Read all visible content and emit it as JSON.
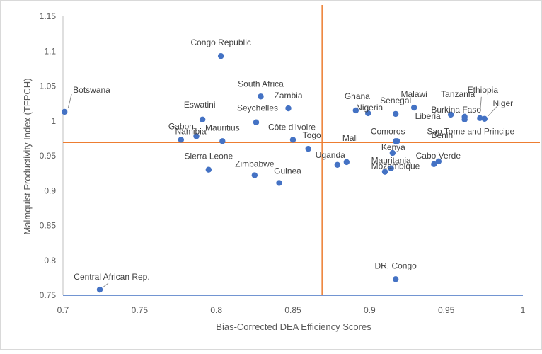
{
  "chart_data": {
    "type": "scatter",
    "xlabel": "Bias-Corrected DEA Efficiency Scores",
    "ylabel": "Malmquist Productivity Index (TFPCH)",
    "xlim": [
      0.7,
      1.0
    ],
    "ylim": [
      0.75,
      1.15
    ],
    "xticks": [
      "0.7",
      "0.75",
      "0.8",
      "0.85",
      "0.9",
      "0.95",
      "1"
    ],
    "yticks": [
      "0.75",
      "0.8",
      "0.85",
      "0.9",
      "0.95",
      "1",
      "1.05",
      "1.1",
      "1.15"
    ],
    "reference_lines": {
      "x": 0.869,
      "y": 0.969
    },
    "colors": {
      "point": "#4472C4",
      "ref_line": "#ED7D31",
      "axis": "#4472C4",
      "left_axis": "#BFBFBF"
    },
    "points": [
      {
        "name": "Botswana",
        "x": 0.701,
        "y": 1.013
      },
      {
        "name": "Congo Republic",
        "x": 0.803,
        "y": 1.093
      },
      {
        "name": "South Africa",
        "x": 0.829,
        "y": 1.035
      },
      {
        "name": "Zambia",
        "x": 0.847,
        "y": 1.018
      },
      {
        "name": "Seychelles",
        "x": 0.826,
        "y": 0.998
      },
      {
        "name": "Eswatini",
        "x": 0.791,
        "y": 1.002
      },
      {
        "name": "Namibia",
        "x": 0.787,
        "y": 0.978
      },
      {
        "name": "Gabon",
        "x": 0.777,
        "y": 0.973
      },
      {
        "name": "Mauritius",
        "x": 0.804,
        "y": 0.971
      },
      {
        "name": "Côte d'Ivoire",
        "x": 0.85,
        "y": 0.973
      },
      {
        "name": "Togo",
        "x": 0.86,
        "y": 0.96
      },
      {
        "name": "Sierra Leone",
        "x": 0.795,
        "y": 0.93
      },
      {
        "name": "Zimbabwe",
        "x": 0.825,
        "y": 0.922
      },
      {
        "name": "Guinea",
        "x": 0.841,
        "y": 0.911
      },
      {
        "name": "Ghana",
        "x": 0.891,
        "y": 1.015
      },
      {
        "name": "Nigeria",
        "x": 0.899,
        "y": 1.011
      },
      {
        "name": "Senegal",
        "x": 0.917,
        "y": 1.01
      },
      {
        "name": "Malawi",
        "x": 0.929,
        "y": 1.019
      },
      {
        "name": "Tanzania",
        "x": 0.953,
        "y": 1.009
      },
      {
        "name": "Liberia",
        "x": 0.962,
        "y": 1.006
      },
      {
        "name": "Burkina Faso",
        "x": 0.962,
        "y": 1.002
      },
      {
        "name": "Ethiopia",
        "x": 0.972,
        "y": 1.004
      },
      {
        "name": "Niger",
        "x": 0.975,
        "y": 1.003
      },
      {
        "name": "Comoros",
        "x": 0.917,
        "y": 0.971
      },
      {
        "name": "Sao Tome and Principe",
        "x": 0.918,
        "y": 0.971
      },
      {
        "name": "Kenya",
        "x": 0.915,
        "y": 0.954
      },
      {
        "name": "Mali",
        "x": 0.885,
        "y": 0.941
      },
      {
        "name": "Uganda",
        "x": 0.879,
        "y": 0.937
      },
      {
        "name": "Benin",
        "x": 0.945,
        "y": 0.942
      },
      {
        "name": "Cabo Verde",
        "x": 0.942,
        "y": 0.938
      },
      {
        "name": "Mauritania",
        "x": 0.914,
        "y": 0.932
      },
      {
        "name": "Mozambique",
        "x": 0.91,
        "y": 0.927
      },
      {
        "name": "DR. Congo",
        "x": 0.917,
        "y": 0.773
      },
      {
        "name": "Central African Rep.",
        "x": 0.724,
        "y": 0.758
      }
    ]
  }
}
